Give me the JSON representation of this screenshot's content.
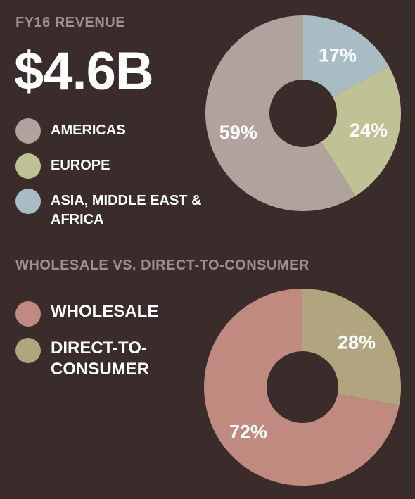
{
  "section1": {
    "title": "FY16 REVENUE",
    "total": "$4.6B",
    "legend": [
      {
        "label": "AMERICAS",
        "color": "#b0a29d"
      },
      {
        "label": "EUROPE",
        "color": "#bfc294"
      },
      {
        "label": "ASIA, MIDDLE EAST & AFRICA",
        "color": "#a9bcc4"
      }
    ]
  },
  "section2": {
    "title": "WHOLESALE VS. DIRECT-TO-CONSUMER",
    "legend": [
      {
        "label": "WHOLESALE",
        "color": "#c08a80"
      },
      {
        "label": "DIRECT-TO-CONSUMER",
        "color": "#b0a57f"
      }
    ]
  },
  "chart_data": [
    {
      "type": "pie",
      "title": "FY16 REVENUE",
      "donut": true,
      "start": "12 o'clock",
      "direction": "clockwise",
      "slices": [
        {
          "label": "ASIA, MIDDLE EAST & AFRICA",
          "value": 17,
          "display": "17%",
          "color": "#a9bcc4"
        },
        {
          "label": "EUROPE",
          "value": 24,
          "display": "24%",
          "color": "#bfc294"
        },
        {
          "label": "AMERICAS",
          "value": 59,
          "display": "59%",
          "color": "#b0a29d"
        }
      ]
    },
    {
      "type": "pie",
      "title": "WHOLESALE VS. DIRECT-TO-CONSUMER",
      "donut": true,
      "start": "12 o'clock",
      "direction": "clockwise",
      "slices": [
        {
          "label": "DIRECT-TO-CONSUMER",
          "value": 28,
          "display": "28%",
          "color": "#b0a57f"
        },
        {
          "label": "WHOLESALE",
          "value": 72,
          "display": "72%",
          "color": "#c08a80"
        }
      ]
    }
  ]
}
